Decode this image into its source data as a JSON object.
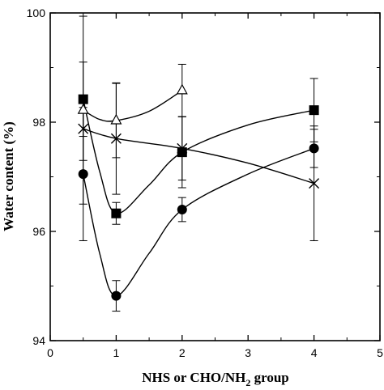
{
  "chart_data": {
    "type": "scatter",
    "title": "",
    "xlabel": "NHS or CHO/NH",
    "xlabel_sub": "2",
    "xlabel_suffix": " group",
    "ylabel": "Water content (%)",
    "xlim": [
      0,
      5
    ],
    "ylim": [
      94,
      100
    ],
    "xticks": [
      0,
      1,
      2,
      3,
      4,
      5
    ],
    "yticks": [
      94,
      96,
      98,
      100
    ],
    "grid": false,
    "legend": "none",
    "series": [
      {
        "marker": "square",
        "x": [
          0.5,
          1,
          2,
          4
        ],
        "y": [
          98.42,
          96.33,
          97.45,
          98.22
        ],
        "err": [
          0.68,
          0.2,
          0.65,
          0.58
        ],
        "curve": [
          [
            0.5,
            98.42
          ],
          [
            0.75,
            97.1
          ],
          [
            1,
            96.33
          ],
          [
            1.5,
            96.85
          ],
          [
            2,
            97.45
          ],
          [
            3,
            97.95
          ],
          [
            4,
            98.22
          ]
        ]
      },
      {
        "marker": "triangle-open",
        "x": [
          0.5,
          1,
          2
        ],
        "y": [
          98.22,
          98.03,
          98.58
        ],
        "err": [
          1.72,
          0.68,
          0.48
        ],
        "curve": [
          [
            0.5,
            98.22
          ],
          [
            0.75,
            98.05
          ],
          [
            1,
            98.03
          ],
          [
            1.5,
            98.2
          ],
          [
            2,
            98.58
          ]
        ]
      },
      {
        "marker": "x",
        "x": [
          0.5,
          1,
          2,
          4
        ],
        "y": [
          97.88,
          97.7,
          97.52,
          96.88
        ],
        "err": [
          0.58,
          1.02,
          0.58,
          1.05
        ],
        "curve": [
          [
            0.5,
            97.88
          ],
          [
            1,
            97.7
          ],
          [
            2,
            97.52
          ],
          [
            3,
            97.25
          ],
          [
            4,
            96.88
          ]
        ]
      },
      {
        "marker": "circle",
        "x": [
          0.5,
          1,
          2,
          4
        ],
        "y": [
          97.05,
          94.82,
          96.4,
          97.52
        ],
        "err": [
          1.22,
          0.28,
          0.22,
          0.35
        ],
        "curve": [
          [
            0.5,
            97.05
          ],
          [
            0.75,
            95.6
          ],
          [
            1,
            94.82
          ],
          [
            1.5,
            95.6
          ],
          [
            2,
            96.4
          ],
          [
            3,
            97.05
          ],
          [
            4,
            97.52
          ]
        ]
      }
    ]
  }
}
